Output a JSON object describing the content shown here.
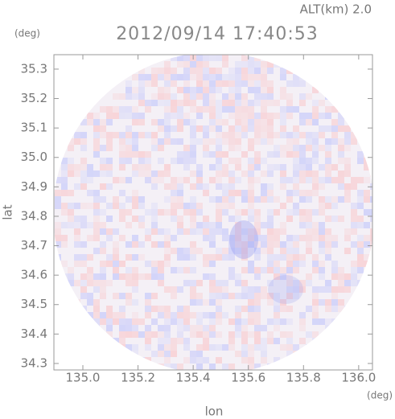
{
  "chart_data": {
    "type": "radar-image",
    "title": "2012/09/14 17:40:53",
    "annotation": "ALT(km) 2.0",
    "x_label": "lon",
    "y_label": "lat",
    "x_unit": "(deg)",
    "y_unit": "(deg)",
    "xlim": [
      134.895,
      136.05
    ],
    "ylim": [
      34.278,
      35.349
    ],
    "xticks": [
      {
        "value": 135,
        "label": "135.0"
      },
      135.2,
      135.4,
      135.6,
      135.8,
      {
        "value": 136,
        "label": "136.0"
      }
    ],
    "yticks": [
      34.3,
      34.4,
      34.5,
      34.6,
      34.7,
      34.8,
      34.9,
      {
        "value": 35,
        "label": "35.0"
      },
      35.1,
      35.2,
      35.3
    ]
  }
}
